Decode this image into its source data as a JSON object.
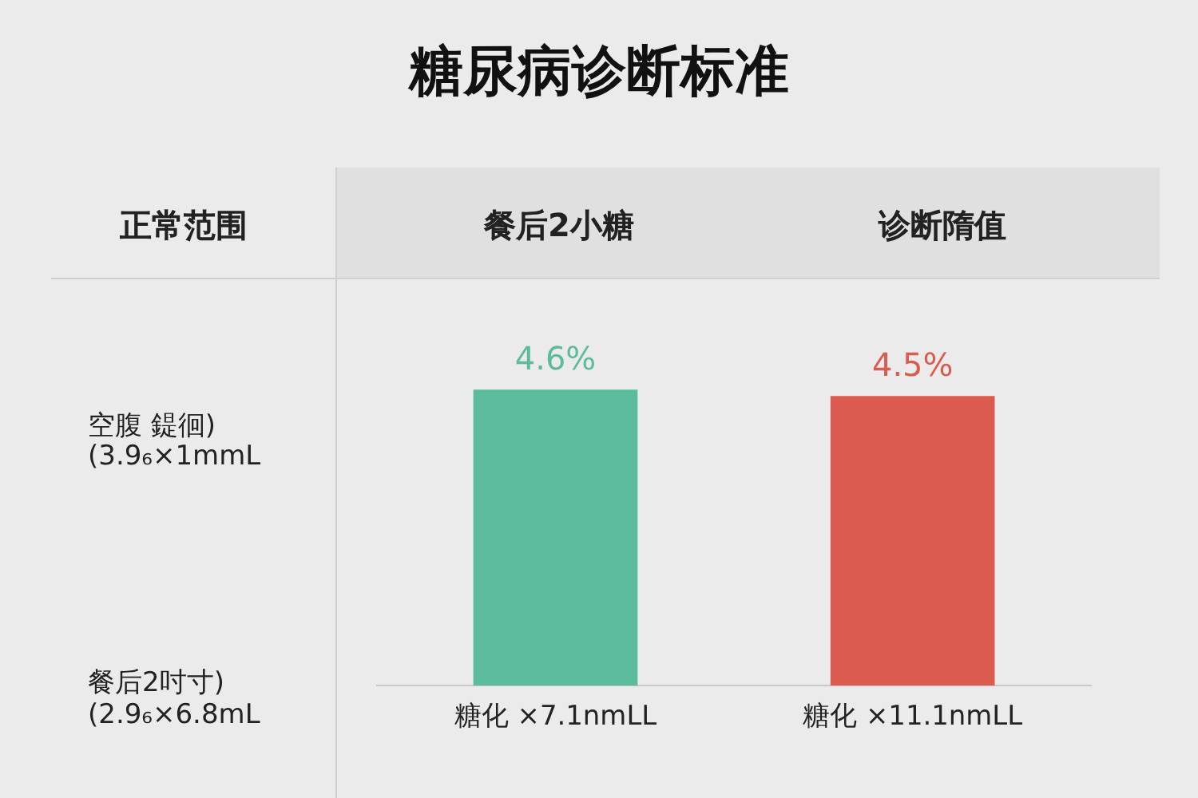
{
  "chart_data": {
    "type": "bar",
    "title": "糖尿病诊断标准",
    "categories": [
      "糖化 ×7.1nmLL",
      "糖化 ×11.1nmLL"
    ],
    "values": [
      4.6,
      4.5
    ],
    "colors": [
      "#5bbb9d",
      "#dc5b4f"
    ],
    "value_labels": [
      "4.6%",
      "4.5%"
    ],
    "grid": false,
    "annotations": [
      "正常范围",
      "餐后2小糖",
      "诊断隋值",
      "空腹 鍉徊)",
      "(3.9₆×1mmL",
      "餐后2吋寸)",
      "(2.9₆×6.8mL"
    ]
  }
}
